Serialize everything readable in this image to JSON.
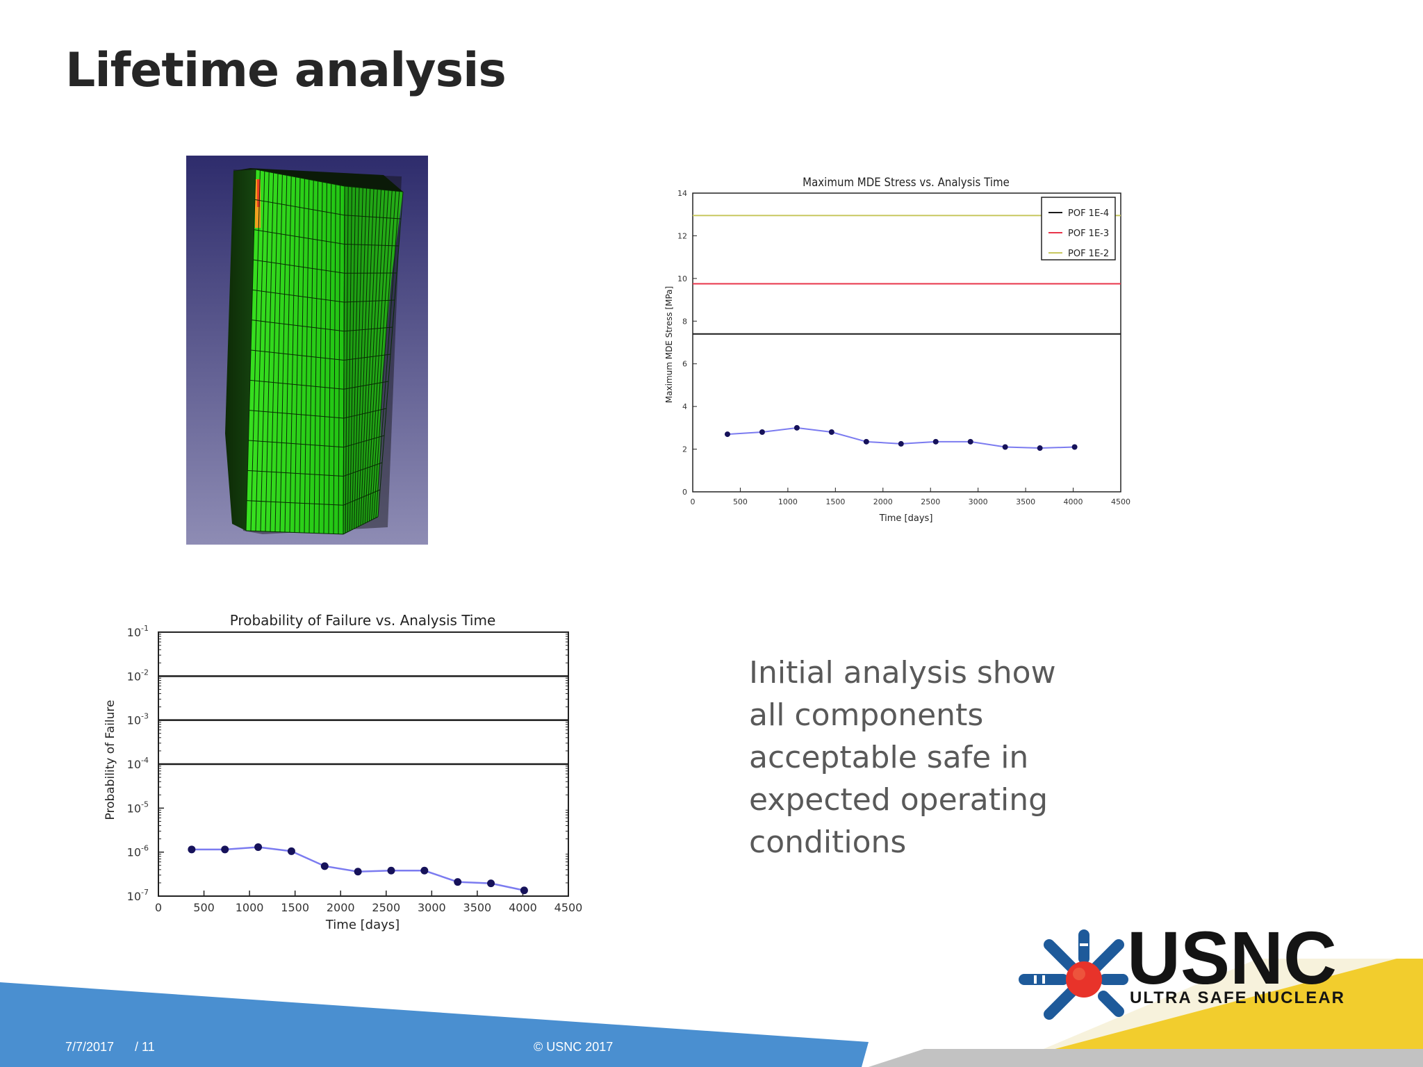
{
  "slide": {
    "title": "Lifetime analysis",
    "body_lines": [
      "Initial analysis show",
      "all components",
      "acceptable safe in",
      "expected operating",
      "conditions"
    ],
    "footer": {
      "date": "7/7/2017",
      "page": "/ 11",
      "copyright": "© USNC 2017"
    },
    "logo": {
      "name": "USNC",
      "tagline": "ULTRA SAFE NUCLEAR"
    }
  },
  "colors": {
    "title": "#262626",
    "body_text": "#595959",
    "footer_blue": "#4a8fd0",
    "footer_yellow": "#f2cd2d",
    "logo_red": "#e8332a",
    "logo_blue": "#1e5a9a",
    "logo_text": "#141414",
    "fea_background": "#3f3d78",
    "fea_mesh": "#2dd61a",
    "series_line": "#7b7bf0",
    "series_marker": "#16125a"
  },
  "chart_data": [
    {
      "type": "line",
      "title": "Maximum MDE Stress vs. Analysis Time",
      "xlabel": "Time [days]",
      "ylabel": "Maximum MDE Stress [MPa]",
      "xlim": [
        0,
        4500
      ],
      "ylim": [
        0,
        14
      ],
      "xticks": [
        0,
        500,
        1000,
        1500,
        2000,
        2500,
        3000,
        3500,
        4000,
        4500
      ],
      "yticks": [
        0,
        2,
        4,
        6,
        8,
        10,
        12,
        14
      ],
      "legend_position": "top-right",
      "grid": false,
      "hlines": [
        {
          "name": "POF 1E-4",
          "value": 7.4,
          "color": "#1a1a1a"
        },
        {
          "name": "POF 1E-3",
          "value": 9.75,
          "color": "#e8334a"
        },
        {
          "name": "POF 1E-2",
          "value": 12.95,
          "color": "#c8c860"
        }
      ],
      "series": [
        {
          "x": [
            365,
            730,
            1095,
            1460,
            1825,
            2190,
            2555,
            2920,
            3285,
            3650,
            4015
          ],
          "values": [
            2.7,
            2.8,
            3.0,
            2.8,
            2.35,
            2.25,
            2.35,
            2.35,
            2.1,
            2.05,
            2.1
          ]
        }
      ]
    },
    {
      "type": "line",
      "title": "Probability of Failure vs. Analysis Time",
      "xlabel": "Time [days]",
      "ylabel": "Probability of Failure",
      "xlim": [
        0,
        4500
      ],
      "ylim": [
        1e-07,
        0.1
      ],
      "yscale": "log",
      "xticks": [
        0,
        500,
        1000,
        1500,
        2000,
        2500,
        3000,
        3500,
        4000,
        4500
      ],
      "yticks": [
        {
          "base": "10",
          "exp": "-7",
          "value": 1e-07
        },
        {
          "base": "10",
          "exp": "-6",
          "value": 1e-06
        },
        {
          "base": "10",
          "exp": "-5",
          "value": 1e-05
        },
        {
          "base": "10",
          "exp": "-4",
          "value": 0.0001
        },
        {
          "base": "10",
          "exp": "-3",
          "value": 0.001
        },
        {
          "base": "10",
          "exp": "-2",
          "value": 0.01
        },
        {
          "base": "10",
          "exp": "-1",
          "value": 0.1
        }
      ],
      "grid": false,
      "hlines": [
        {
          "value": 0.01,
          "color": "#1a1a1a"
        },
        {
          "value": 0.001,
          "color": "#1a1a1a"
        },
        {
          "value": 0.0001,
          "color": "#1a1a1a"
        }
      ],
      "series": [
        {
          "x": [
            365,
            730,
            1095,
            1460,
            1825,
            2190,
            2555,
            2920,
            3285,
            3650,
            4015
          ],
          "values": [
            1.15e-06,
            1.15e-06,
            1.3e-06,
            1.05e-06,
            4.8e-07,
            3.6e-07,
            3.8e-07,
            3.8e-07,
            2.1e-07,
            1.95e-07,
            1.35e-07
          ]
        }
      ]
    }
  ]
}
